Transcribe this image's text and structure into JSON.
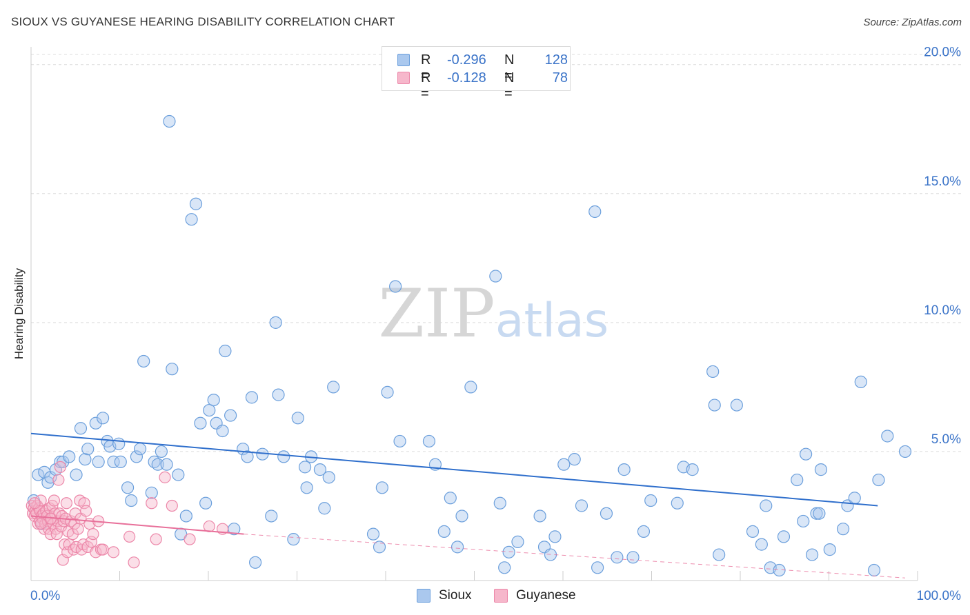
{
  "title": "SIOUX VS GUYANESE HEARING DISABILITY CORRELATION CHART",
  "source": "Source: ZipAtlas.com",
  "watermark": {
    "zip": "ZIP",
    "atlas": "atlas"
  },
  "colors": {
    "sioux_fill": "#aac8ee",
    "sioux_stroke": "#6b9fdc",
    "sioux_line": "#2f6fcc",
    "guyanese_fill": "#f6b7cb",
    "guyanese_stroke": "#ec86a8",
    "guyanese_line": "#e8709a",
    "axis_text": "#3a73c8",
    "grid": "#dcdcdc"
  },
  "legend": {
    "rows": [
      {
        "r_label": "R =",
        "r_value": "-0.296",
        "n_label": "N =",
        "n_value": "128"
      },
      {
        "r_label": "R =",
        "r_value": "-0.128",
        "n_label": "N =",
        "n_value": "78"
      }
    ]
  },
  "bottom_legend": {
    "sioux": "Sioux",
    "guyanese": "Guyanese"
  },
  "chart_data": {
    "type": "scatter",
    "title": "SIOUX VS GUYANESE HEARING DISABILITY CORRELATION CHART",
    "xlabel": "",
    "ylabel": "Hearing Disability",
    "xlim": [
      0,
      100
    ],
    "ylim": [
      0,
      20.5
    ],
    "x_tick_labels": [
      "0.0%",
      "100.0%"
    ],
    "y_ticks": [
      5,
      10,
      15,
      20
    ],
    "y_tick_labels": [
      "5.0%",
      "10.0%",
      "15.0%",
      "20.0%"
    ],
    "grid": true,
    "series": [
      {
        "name": "Sioux",
        "r": -0.296,
        "n": 128,
        "trend": {
          "x0": 0,
          "y0": 5.7,
          "x1": 95.5,
          "y1": 2.9
        },
        "points": [
          [
            0.3,
            3.1
          ],
          [
            0.8,
            4.1
          ],
          [
            1.5,
            4.2
          ],
          [
            1.9,
            3.8
          ],
          [
            2.2,
            4.0
          ],
          [
            2.8,
            4.3
          ],
          [
            3.3,
            4.6
          ],
          [
            3.6,
            4.6
          ],
          [
            4.3,
            4.8
          ],
          [
            5.1,
            4.1
          ],
          [
            5.6,
            5.9
          ],
          [
            6.1,
            4.7
          ],
          [
            6.4,
            5.1
          ],
          [
            7.3,
            6.1
          ],
          [
            7.6,
            4.6
          ],
          [
            8.1,
            6.3
          ],
          [
            8.6,
            5.4
          ],
          [
            8.9,
            5.2
          ],
          [
            9.3,
            4.6
          ],
          [
            9.9,
            5.3
          ],
          [
            10.1,
            4.6
          ],
          [
            10.9,
            3.6
          ],
          [
            11.3,
            3.1
          ],
          [
            11.9,
            4.8
          ],
          [
            12.3,
            5.1
          ],
          [
            12.7,
            8.5
          ],
          [
            13.6,
            3.4
          ],
          [
            13.9,
            4.6
          ],
          [
            14.3,
            4.5
          ],
          [
            14.7,
            5.0
          ],
          [
            15.3,
            4.5
          ],
          [
            15.6,
            17.8
          ],
          [
            15.9,
            8.2
          ],
          [
            16.6,
            4.1
          ],
          [
            16.9,
            1.8
          ],
          [
            17.5,
            2.5
          ],
          [
            18.1,
            14.0
          ],
          [
            18.6,
            14.6
          ],
          [
            19.1,
            6.1
          ],
          [
            19.7,
            3.0
          ],
          [
            20.1,
            6.6
          ],
          [
            20.6,
            7.0
          ],
          [
            20.9,
            6.1
          ],
          [
            21.6,
            5.8
          ],
          [
            21.9,
            8.9
          ],
          [
            22.5,
            6.4
          ],
          [
            22.9,
            2.0
          ],
          [
            23.9,
            5.1
          ],
          [
            24.4,
            4.8
          ],
          [
            24.9,
            7.1
          ],
          [
            25.3,
            0.7
          ],
          [
            26.1,
            4.9
          ],
          [
            27.1,
            2.5
          ],
          [
            27.6,
            10.0
          ],
          [
            27.9,
            7.2
          ],
          [
            28.5,
            4.8
          ],
          [
            29.6,
            1.6
          ],
          [
            30.1,
            6.3
          ],
          [
            30.9,
            4.4
          ],
          [
            31.1,
            3.6
          ],
          [
            31.6,
            4.8
          ],
          [
            32.6,
            4.3
          ],
          [
            33.1,
            2.8
          ],
          [
            33.6,
            4.0
          ],
          [
            34.1,
            7.5
          ],
          [
            38.6,
            1.8
          ],
          [
            39.3,
            1.3
          ],
          [
            39.6,
            3.6
          ],
          [
            40.2,
            7.3
          ],
          [
            41.1,
            11.4
          ],
          [
            41.6,
            5.4
          ],
          [
            44.9,
            5.4
          ],
          [
            45.6,
            4.5
          ],
          [
            46.6,
            1.9
          ],
          [
            47.3,
            3.2
          ],
          [
            48.1,
            1.3
          ],
          [
            48.6,
            2.5
          ],
          [
            49.6,
            7.5
          ],
          [
            52.4,
            11.8
          ],
          [
            52.9,
            3.0
          ],
          [
            53.4,
            0.5
          ],
          [
            53.9,
            1.1
          ],
          [
            54.9,
            1.5
          ],
          [
            57.4,
            2.5
          ],
          [
            57.9,
            1.3
          ],
          [
            58.6,
            1.0
          ],
          [
            59.1,
            1.7
          ],
          [
            60.1,
            4.5
          ],
          [
            61.3,
            4.7
          ],
          [
            62.1,
            2.9
          ],
          [
            63.6,
            14.3
          ],
          [
            63.9,
            0.5
          ],
          [
            64.9,
            2.6
          ],
          [
            66.1,
            0.9
          ],
          [
            66.9,
            4.3
          ],
          [
            67.9,
            0.9
          ],
          [
            69.1,
            1.9
          ],
          [
            69.9,
            3.1
          ],
          [
            72.9,
            3.0
          ],
          [
            73.6,
            4.4
          ],
          [
            74.6,
            4.3
          ],
          [
            76.9,
            8.1
          ],
          [
            77.1,
            6.8
          ],
          [
            77.6,
            1.0
          ],
          [
            79.6,
            6.8
          ],
          [
            81.4,
            1.9
          ],
          [
            82.4,
            1.4
          ],
          [
            82.9,
            2.9
          ],
          [
            83.4,
            0.5
          ],
          [
            84.4,
            0.4
          ],
          [
            84.9,
            1.7
          ],
          [
            86.4,
            3.9
          ],
          [
            87.1,
            2.3
          ],
          [
            87.4,
            4.9
          ],
          [
            88.1,
            1.0
          ],
          [
            88.6,
            2.6
          ],
          [
            88.9,
            2.6
          ],
          [
            89.1,
            4.3
          ],
          [
            90.1,
            1.2
          ],
          [
            91.6,
            2.0
          ],
          [
            92.1,
            2.9
          ],
          [
            92.9,
            3.2
          ],
          [
            93.6,
            7.7
          ],
          [
            95.1,
            0.4
          ],
          [
            95.6,
            3.9
          ],
          [
            96.6,
            5.6
          ],
          [
            98.6,
            5.0
          ],
          [
            1.2,
            2.2
          ]
        ]
      },
      {
        "name": "Guyanese",
        "r": -0.128,
        "n": 78,
        "trend": {
          "x0": 0,
          "y0": 2.5,
          "x1": 24,
          "y1": 1.8
        },
        "trend_extension": {
          "x0": 24,
          "y0": 1.8,
          "x1": 98.6,
          "y1": 0.1
        },
        "points": [
          [
            0.1,
            2.9
          ],
          [
            0.2,
            2.6
          ],
          [
            0.3,
            2.8
          ],
          [
            0.4,
            2.5
          ],
          [
            0.5,
            2.7
          ],
          [
            0.6,
            2.6
          ],
          [
            0.7,
            2.9
          ],
          [
            0.8,
            2.2
          ],
          [
            0.9,
            2.8
          ],
          [
            1.0,
            2.3
          ],
          [
            1.0,
            2.7
          ],
          [
            1.1,
            3.1
          ],
          [
            1.2,
            2.5
          ],
          [
            1.3,
            2.4
          ],
          [
            1.4,
            2.6
          ],
          [
            1.5,
            2.0
          ],
          [
            1.6,
            2.2
          ],
          [
            1.7,
            2.7
          ],
          [
            1.8,
            2.5
          ],
          [
            1.9,
            2.3
          ],
          [
            2.0,
            2.0
          ],
          [
            2.1,
            2.8
          ],
          [
            2.2,
            1.8
          ],
          [
            2.3,
            2.4
          ],
          [
            2.4,
            2.9
          ],
          [
            2.5,
            2.2
          ],
          [
            2.6,
            3.1
          ],
          [
            2.7,
            2.6
          ],
          [
            2.8,
            2.0
          ],
          [
            2.9,
            1.8
          ],
          [
            3.0,
            2.3
          ],
          [
            3.1,
            3.9
          ],
          [
            3.2,
            2.6
          ],
          [
            3.3,
            4.4
          ],
          [
            3.4,
            2.1
          ],
          [
            3.5,
            2.5
          ],
          [
            3.6,
            0.8
          ],
          [
            3.7,
            2.3
          ],
          [
            3.8,
            1.4
          ],
          [
            3.9,
            2.4
          ],
          [
            4.0,
            3.0
          ],
          [
            4.1,
            1.1
          ],
          [
            4.2,
            1.9
          ],
          [
            4.3,
            1.4
          ],
          [
            4.5,
            2.3
          ],
          [
            4.7,
            1.8
          ],
          [
            4.8,
            1.2
          ],
          [
            4.9,
            2.2
          ],
          [
            5.0,
            2.6
          ],
          [
            5.1,
            1.3
          ],
          [
            5.3,
            2.0
          ],
          [
            5.5,
            3.1
          ],
          [
            5.6,
            2.4
          ],
          [
            5.7,
            1.2
          ],
          [
            5.9,
            1.4
          ],
          [
            6.0,
            3.0
          ],
          [
            6.2,
            2.7
          ],
          [
            6.4,
            1.3
          ],
          [
            6.6,
            2.2
          ],
          [
            6.8,
            1.5
          ],
          [
            7.0,
            1.8
          ],
          [
            7.3,
            1.1
          ],
          [
            7.6,
            2.3
          ],
          [
            7.9,
            1.2
          ],
          [
            8.1,
            1.2
          ],
          [
            9.3,
            1.1
          ],
          [
            11.1,
            1.7
          ],
          [
            11.6,
            0.7
          ],
          [
            13.6,
            3.0
          ],
          [
            14.1,
            1.6
          ],
          [
            15.1,
            4.0
          ],
          [
            15.9,
            2.9
          ],
          [
            17.9,
            1.6
          ],
          [
            20.1,
            2.1
          ],
          [
            21.6,
            2.0
          ],
          [
            0.4,
            3.0
          ],
          [
            1.1,
            2.2
          ],
          [
            2.2,
            2.4
          ]
        ]
      }
    ]
  }
}
